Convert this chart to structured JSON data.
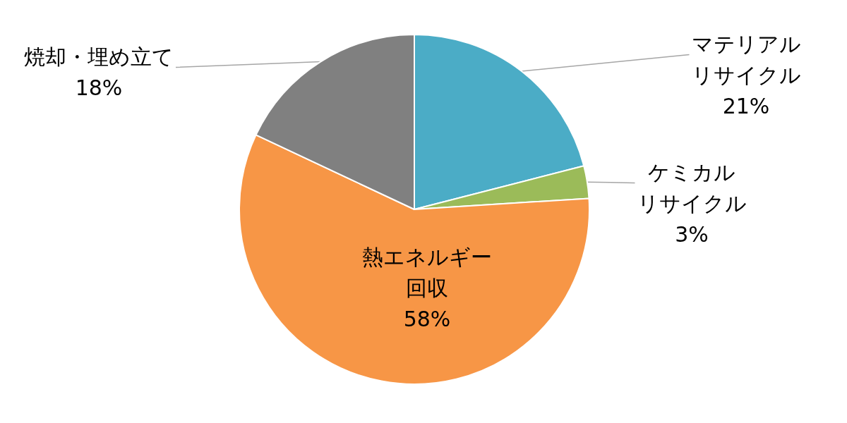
{
  "chart_data": {
    "type": "pie",
    "categories": [
      "マテリアルリサイクル",
      "ケミカルリサイクル",
      "熱エネルギー回収",
      "焼却・埋め立て"
    ],
    "values": [
      21,
      3,
      58,
      18
    ],
    "value_labels": [
      "21%",
      "3%",
      "58%",
      "18%"
    ],
    "colors": [
      "#4bacc6",
      "#9bbb59",
      "#f79646",
      "#808080"
    ]
  }
}
